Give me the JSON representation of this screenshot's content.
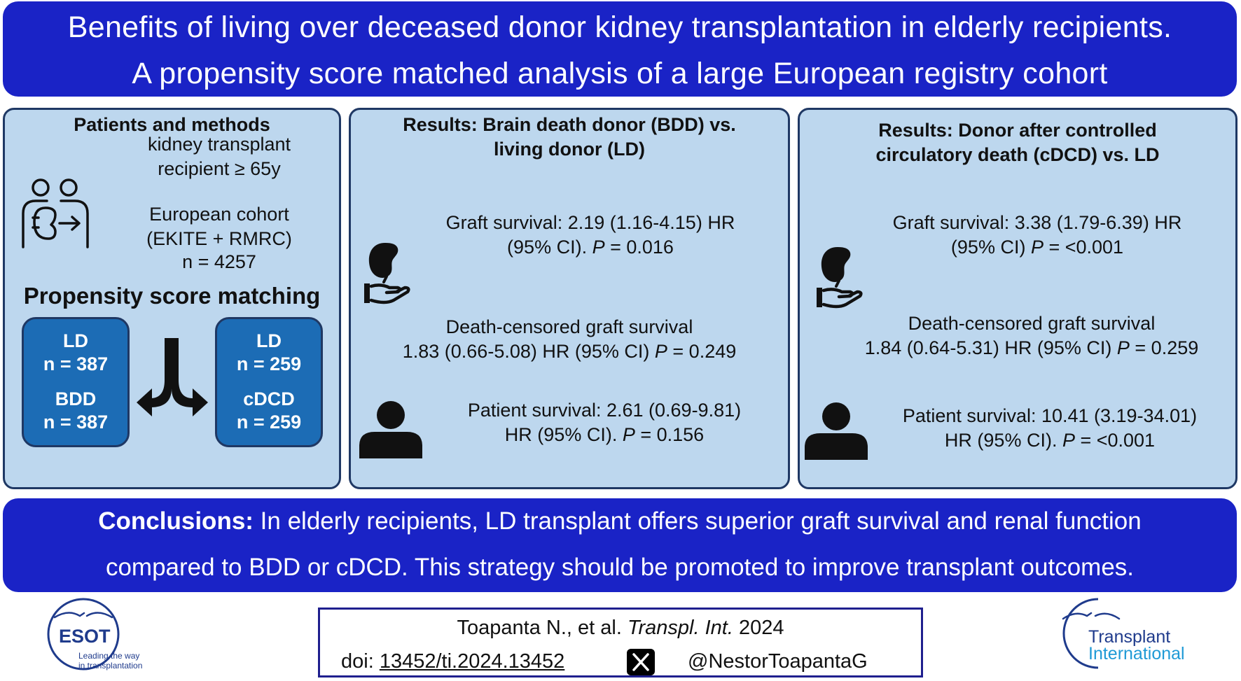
{
  "title": {
    "line1": "Benefits of living over deceased donor kidney transplantation in elderly recipients.",
    "line2": "A propensity score matched analysis of a large European registry cohort"
  },
  "methods": {
    "heading": "Patients and methods",
    "recipient_line1": "kidney transplant",
    "recipient_line2": "recipient ≥ 65y",
    "cohort_line1": "European cohort",
    "cohort_line2": "(EKITE + RMRC)",
    "n_total": "n = 4257",
    "psm_heading": "Propensity score matching",
    "left_group": {
      "label1": "LD",
      "n1": "n = 387",
      "label2": "BDD",
      "n2": "n = 387"
    },
    "right_group": {
      "label1": "LD",
      "n1": "n = 259",
      "label2": "cDCD",
      "n2": "n = 259"
    },
    "icons": [
      "recipients-kidney-icon",
      "split-arrow-icon"
    ]
  },
  "bdd_results": {
    "heading_line1": "Results: Brain death donor (BDD) vs.",
    "heading_line2": "living donor (LD)",
    "graft_line1": "Graft survival: 2.19 (1.16-4.15) HR",
    "graft_line2_pre": "(95% CI). ",
    "graft_p_label": "P",
    "graft_p_val": " = 0.016",
    "dcgs_line1": "Death-censored graft survival",
    "dcgs_line2_pre": "1.83 (0.66-5.08) HR (95% CI) ",
    "dcgs_p_label": "P",
    "dcgs_p_val": " = 0.249",
    "patient_line1": "Patient survival: 2.61 (0.69-9.81)",
    "patient_line2_pre": "HR (95% CI). ",
    "patient_p_label": "P",
    "patient_p_val": " = 0.156"
  },
  "cdcd_results": {
    "heading_line1": "Results: Donor after controlled",
    "heading_line2": "circulatory death (cDCD) vs. LD",
    "graft_line1": "Graft survival: 3.38 (1.79-6.39) HR",
    "graft_line2_pre": "(95% CI) ",
    "graft_p_label": "P",
    "graft_p_val": " = <0.001",
    "dcgs_line1": "Death-censored graft survival",
    "dcgs_line2_pre": "1.84 (0.64-5.31) HR (95% CI) ",
    "dcgs_p_label": "P",
    "dcgs_p_val": " = 0.259",
    "patient_line1": "Patient survival: 10.41 (3.19-34.01)",
    "patient_line2_pre": "HR (95% CI). ",
    "patient_p_label": "P",
    "patient_p_val": " = <0.001"
  },
  "conclusion": {
    "label": "Conclusions:",
    "line1": " In elderly recipients, LD transplant offers superior graft survival and renal function",
    "line2": "compared to BDD or cDCD. This strategy should be promoted to improve transplant outcomes."
  },
  "citation": {
    "authors": "Toapanta N., et al. ",
    "journal": "Transpl. Int.",
    "year": " 2024",
    "doi_label": "doi: ",
    "doi": "13452/ti.2024.13452",
    "handle": "@NestorToapantaG"
  },
  "logos": {
    "esot_name": "ESOT",
    "esot_tagline1": "Leading the way",
    "esot_tagline2": "in transplantation",
    "ti_line1": "Transplant",
    "ti_line2": "International"
  },
  "colors": {
    "banner": "#1a23c6",
    "panel": "#bdd7ee",
    "group_box": "#1c6cb5",
    "border": "#1f3864",
    "logo_navy": "#1f3b8c",
    "logo_teal": "#1f9ad6"
  }
}
